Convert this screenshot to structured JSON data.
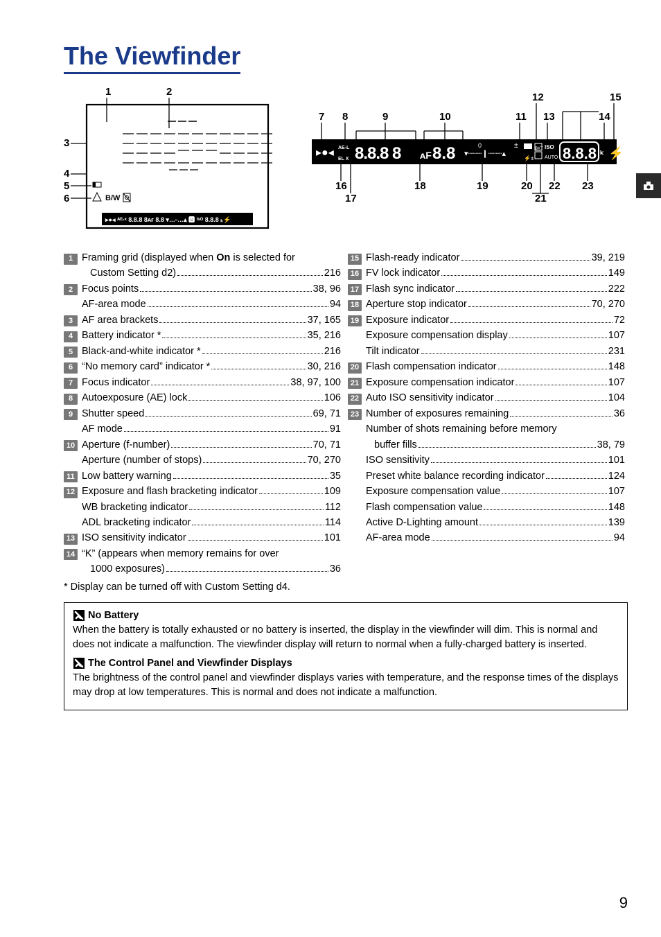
{
  "title": "The Viewfinder",
  "footnote": "* Display can be turned off with Custom Setting d4.",
  "page_number": "9",
  "colors": {
    "accent": "#1a3a8a",
    "numbox_bg": "#777777",
    "text": "#000000",
    "side_tab_bg": "#2a2a2a"
  },
  "diagram_left": {
    "callouts": [
      "1",
      "2",
      "3",
      "4",
      "5",
      "6"
    ]
  },
  "diagram_right": {
    "top_callouts": [
      "7",
      "8",
      "9",
      "10",
      "11",
      "12",
      "13",
      "14",
      "15"
    ],
    "bottom_callouts": [
      "16",
      "17",
      "18",
      "19",
      "20",
      "21",
      "22",
      "23"
    ]
  },
  "left_list": [
    {
      "n": "1",
      "items": [
        {
          "text": "Framing grid (displayed when On is selected for",
          "boldword": "On"
        },
        {
          "text": "Custom Setting d2)",
          "pages": "216",
          "cont": true
        }
      ]
    },
    {
      "n": "2",
      "items": [
        {
          "text": "Focus points",
          "pages": "38, 96"
        },
        {
          "text": "AF-area mode",
          "pages": "94"
        }
      ]
    },
    {
      "n": "3",
      "items": [
        {
          "text": "AF area brackets",
          "pages": "37, 165"
        }
      ]
    },
    {
      "n": "4",
      "items": [
        {
          "text": "Battery indicator *",
          "pages": "35, 216"
        }
      ]
    },
    {
      "n": "5",
      "items": [
        {
          "text": "Black-and-white indicator *",
          "pages": "216"
        }
      ]
    },
    {
      "n": "6",
      "items": [
        {
          "text": "“No memory card” indicator *",
          "pages": "30, 216"
        }
      ]
    },
    {
      "n": "7",
      "items": [
        {
          "text": "Focus indicator",
          "pages": "38, 97, 100"
        }
      ]
    },
    {
      "n": "8",
      "items": [
        {
          "text": "Autoexposure (AE) lock",
          "pages": "106"
        }
      ]
    },
    {
      "n": "9",
      "items": [
        {
          "text": "Shutter speed",
          "pages": "69, 71"
        },
        {
          "text": "AF mode",
          "pages": "91"
        }
      ]
    },
    {
      "n": "10",
      "items": [
        {
          "text": "Aperture (f-number)",
          "pages": "70, 71"
        },
        {
          "text": "Aperture (number of stops)",
          "pages": "70, 270"
        }
      ]
    },
    {
      "n": "11",
      "items": [
        {
          "text": "Low battery warning",
          "pages": "35"
        }
      ]
    },
    {
      "n": "12",
      "items": [
        {
          "text": "Exposure and flash bracketing indicator",
          "pages": "109"
        },
        {
          "text": "WB bracketing indicator",
          "pages": "112"
        },
        {
          "text": "ADL bracketing indicator",
          "pages": "114"
        }
      ]
    },
    {
      "n": "13",
      "items": [
        {
          "text": "ISO sensitivity indicator",
          "pages": "101"
        }
      ]
    },
    {
      "n": "14",
      "items": [
        {
          "text": "“K” (appears when memory remains for over"
        },
        {
          "text": "1000 exposures)",
          "pages": "36",
          "cont": true
        }
      ]
    }
  ],
  "right_list": [
    {
      "n": "15",
      "items": [
        {
          "text": "Flash-ready indicator",
          "pages": "39, 219"
        }
      ]
    },
    {
      "n": "16",
      "items": [
        {
          "text": "FV lock indicator",
          "pages": "149"
        }
      ]
    },
    {
      "n": "17",
      "items": [
        {
          "text": "Flash sync indicator",
          "pages": "222"
        }
      ]
    },
    {
      "n": "18",
      "items": [
        {
          "text": "Aperture stop indicator",
          "pages": "70, 270"
        }
      ]
    },
    {
      "n": "19",
      "items": [
        {
          "text": "Exposure indicator",
          "pages": "72"
        },
        {
          "text": "Exposure compensation display",
          "pages": "107"
        },
        {
          "text": "Tilt indicator",
          "pages": "231"
        }
      ]
    },
    {
      "n": "20",
      "items": [
        {
          "text": "Flash compensation indicator",
          "pages": "148"
        }
      ]
    },
    {
      "n": "21",
      "items": [
        {
          "text": "Exposure compensation indicator",
          "pages": "107"
        }
      ]
    },
    {
      "n": "22",
      "items": [
        {
          "text": "Auto ISO sensitivity indicator",
          "pages": "104"
        }
      ]
    },
    {
      "n": "23",
      "items": [
        {
          "text": "Number of exposures remaining",
          "pages": "36"
        },
        {
          "text": "Number of shots remaining before memory"
        },
        {
          "text": "buffer fills",
          "pages": "38, 79",
          "cont": true
        },
        {
          "text": "ISO sensitivity",
          "pages": "101"
        },
        {
          "text": "Preset white balance recording indicator",
          "pages": "124"
        },
        {
          "text": "Exposure compensation value",
          "pages": "107"
        },
        {
          "text": "Flash compensation value",
          "pages": "148"
        },
        {
          "text": "Active D-Lighting amount",
          "pages": "139"
        },
        {
          "text": "AF-area mode",
          "pages": "94"
        }
      ]
    }
  ],
  "notes": [
    {
      "title": "No Battery",
      "body": "When the battery is totally exhausted or no battery is inserted, the display in the viewfinder will dim.  This is normal and does not indicate a malfunction.  The viewfinder display will return to normal when a fully-charged battery is inserted."
    },
    {
      "title": "The Control Panel and Viewfinder Displays",
      "body": "The brightness of the control panel and viewfinder displays varies with temperature, and the response times of the displays may drop at low temperatures.  This is normal and does not indicate a malfunction."
    }
  ]
}
